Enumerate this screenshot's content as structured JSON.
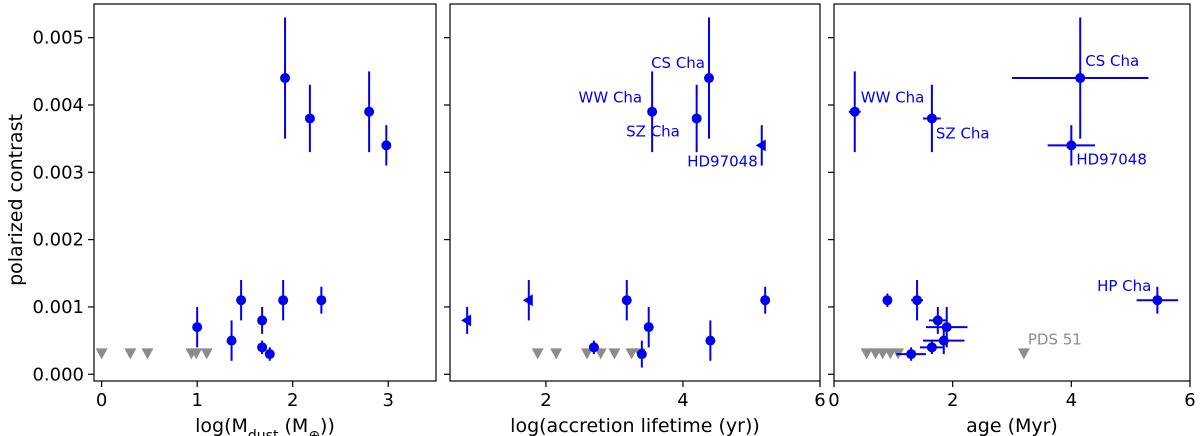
{
  "figure": {
    "ylabel": "polarized contrast",
    "colors": {
      "detection": "#0000ee",
      "upper_limit": "#8c8c8c",
      "axes": "#000000"
    }
  },
  "chart_data": [
    {
      "type": "scatter",
      "panel": "left",
      "xlabel_base": "log(M",
      "xlabel_sub": "dust",
      "xlabel_rest": " (M",
      "xlabel_sym": "⊕",
      "xlabel_end": "))",
      "xlim": [
        -0.08,
        3.5
      ],
      "ylim": [
        -0.0001,
        0.0055
      ],
      "xticks": [
        0,
        1,
        2,
        3
      ],
      "xtick_labels": [
        "0",
        "1",
        "2",
        "3"
      ],
      "yticks": [
        0.0,
        0.001,
        0.002,
        0.003,
        0.004,
        0.005
      ],
      "ytick_labels": [
        "0.000",
        "0.001",
        "0.002",
        "0.003",
        "0.004",
        "0.005"
      ],
      "points": [
        {
          "x": 1.92,
          "y": 0.0044,
          "yerr": 0.0009
        },
        {
          "x": 2.18,
          "y": 0.0038,
          "yerr": 0.0005
        },
        {
          "x": 2.8,
          "y": 0.0039,
          "yerr": 0.0006
        },
        {
          "x": 2.98,
          "y": 0.0034,
          "yerr": 0.0003
        },
        {
          "x": 1.0,
          "y": 0.0007,
          "yerr": 0.0003
        },
        {
          "x": 1.46,
          "y": 0.0011,
          "yerr": 0.0003
        },
        {
          "x": 1.36,
          "y": 0.0005,
          "yerr": 0.0003
        },
        {
          "x": 1.68,
          "y": 0.0008,
          "yerr": 0.0002
        },
        {
          "x": 1.68,
          "y": 0.0004,
          "yerr": 0.0001
        },
        {
          "x": 1.76,
          "y": 0.0003,
          "yerr": 0.0001
        },
        {
          "x": 1.9,
          "y": 0.0011,
          "yerr": 0.0003
        },
        {
          "x": 2.3,
          "y": 0.0011,
          "yerr": 0.0002
        }
      ],
      "upper_limits": [
        {
          "x": 0.0,
          "y": 0.00031
        },
        {
          "x": 0.3,
          "y": 0.00031
        },
        {
          "x": 0.48,
          "y": 0.00031
        },
        {
          "x": 0.94,
          "y": 0.00031
        },
        {
          "x": 0.99,
          "y": 0.00031
        },
        {
          "x": 1.1,
          "y": 0.00031
        }
      ],
      "annotations": []
    },
    {
      "type": "scatter",
      "panel": "middle",
      "xlabel": "log(accretion lifetime (yr))",
      "xlim": [
        0.6,
        6.0
      ],
      "ylim": [
        -0.0001,
        0.0055
      ],
      "xticks": [
        2,
        4,
        6
      ],
      "xtick_labels": [
        "2",
        "4",
        "6"
      ],
      "yticks": [
        0.0,
        0.001,
        0.002,
        0.003,
        0.004,
        0.005
      ],
      "ytick_labels": [],
      "points": [
        {
          "x": 4.38,
          "y": 0.0044,
          "yerr": 0.0009
        },
        {
          "x": 3.55,
          "y": 0.0039,
          "yerr": 0.0006
        },
        {
          "x": 4.2,
          "y": 0.0038,
          "yerr": 0.0005
        },
        {
          "x": 3.18,
          "y": 0.0011,
          "yerr": 0.0003
        },
        {
          "x": 3.5,
          "y": 0.0007,
          "yerr": 0.0003
        },
        {
          "x": 2.7,
          "y": 0.0004,
          "yerr": 0.0001
        },
        {
          "x": 3.4,
          "y": 0.0003,
          "yerr": 0.0002
        },
        {
          "x": 4.4,
          "y": 0.0005,
          "yerr": 0.0003
        },
        {
          "x": 5.2,
          "y": 0.0011,
          "yerr": 0.0002
        }
      ],
      "lower_limits": [
        {
          "x": 5.15,
          "y": 0.0034,
          "yerr": 0.0003
        },
        {
          "x": 0.85,
          "y": 0.0008,
          "yerr": 0.0002
        },
        {
          "x": 1.75,
          "y": 0.0011,
          "yerr": 0.0003
        }
      ],
      "upper_limits": [
        {
          "x": 1.88,
          "y": 0.00031
        },
        {
          "x": 2.15,
          "y": 0.00031
        },
        {
          "x": 2.6,
          "y": 0.00031
        },
        {
          "x": 2.8,
          "y": 0.00031
        },
        {
          "x": 3.0,
          "y": 0.00031
        },
        {
          "x": 3.25,
          "y": 0.00031
        },
        {
          "x": 3.37,
          "y": 0.00031
        }
      ],
      "annotations": [
        {
          "text": "CS Cha",
          "x": 4.38,
          "y": 0.0044,
          "anchor": "end",
          "dx": -4,
          "dy": -10
        },
        {
          "text": "WW Cha",
          "x": 3.55,
          "y": 0.0039,
          "anchor": "end",
          "dx": -10,
          "dy": -9
        },
        {
          "text": "SZ Cha",
          "x": 3.55,
          "y": 0.0039,
          "anchor": "start",
          "dx": -26,
          "dy": 25
        },
        {
          "text": "HD97048",
          "x": 5.15,
          "y": 0.0034,
          "anchor": "end",
          "dx": -4,
          "dy": 21
        }
      ]
    },
    {
      "type": "scatter",
      "panel": "right",
      "xlabel": "age (Myr)",
      "xlim": [
        0.0,
        6.0
      ],
      "ylim": [
        -0.0001,
        0.0055
      ],
      "xticks": [
        0,
        2,
        4,
        6
      ],
      "xtick_labels": [
        "0",
        "2",
        "4",
        "6"
      ],
      "yticks": [
        0.0,
        0.001,
        0.002,
        0.003,
        0.004,
        0.005
      ],
      "ytick_labels": [],
      "points": [
        {
          "x": 4.15,
          "y": 0.0044,
          "yerr": 0.0009,
          "xerr": 1.15
        },
        {
          "x": 0.35,
          "y": 0.0039,
          "yerr": 0.0006,
          "xerr": 0.1
        },
        {
          "x": 1.65,
          "y": 0.0038,
          "yerr": 0.0005,
          "xerr": 0.15
        },
        {
          "x": 4.0,
          "y": 0.0034,
          "yerr": 0.0003,
          "xerr": 0.4
        },
        {
          "x": 5.45,
          "y": 0.0011,
          "yerr": 0.0002,
          "xerr": 0.35
        },
        {
          "x": 0.9,
          "y": 0.0011,
          "yerr": 0.0001,
          "xerr": 0.08
        },
        {
          "x": 1.4,
          "y": 0.0011,
          "yerr": 0.0003,
          "xerr": 0.1
        },
        {
          "x": 1.75,
          "y": 0.0008,
          "yerr": 0.0002,
          "xerr": 0.15
        },
        {
          "x": 1.9,
          "y": 0.0007,
          "yerr": 0.0003,
          "xerr": 0.35
        },
        {
          "x": 1.85,
          "y": 0.0005,
          "yerr": 0.0002,
          "xerr": 0.35
        },
        {
          "x": 1.65,
          "y": 0.0004,
          "yerr": 0.0001,
          "xerr": 0.2
        },
        {
          "x": 1.3,
          "y": 0.0003,
          "yerr": 0.0001,
          "xerr": 0.25
        }
      ],
      "upper_limits": [
        {
          "x": 0.55,
          "y": 0.00031
        },
        {
          "x": 0.7,
          "y": 0.00031
        },
        {
          "x": 0.82,
          "y": 0.00031
        },
        {
          "x": 0.95,
          "y": 0.00031
        },
        {
          "x": 1.08,
          "y": 0.00031
        },
        {
          "x": 3.2,
          "y": 0.00031
        }
      ],
      "annotations": [
        {
          "text": "CS Cha",
          "x": 4.15,
          "y": 0.0044,
          "anchor": "start",
          "dx": 5,
          "dy": -12,
          "color": "detection"
        },
        {
          "text": "WW Cha",
          "x": 0.35,
          "y": 0.0039,
          "anchor": "start",
          "dx": 6,
          "dy": -9,
          "color": "detection"
        },
        {
          "text": "SZ Cha",
          "x": 1.65,
          "y": 0.0038,
          "anchor": "start",
          "dx": 4,
          "dy": 20,
          "color": "detection"
        },
        {
          "text": "HD97048",
          "x": 4.0,
          "y": 0.0034,
          "anchor": "start",
          "dx": 5,
          "dy": 19,
          "color": "detection"
        },
        {
          "text": "HP Cha",
          "x": 5.45,
          "y": 0.0011,
          "anchor": "end",
          "dx": -6,
          "dy": -9,
          "color": "detection"
        },
        {
          "text": "PDS 51",
          "x": 3.2,
          "y": 0.00031,
          "anchor": "start",
          "dx": 4,
          "dy": -9,
          "color": "upper_limit"
        }
      ]
    }
  ]
}
